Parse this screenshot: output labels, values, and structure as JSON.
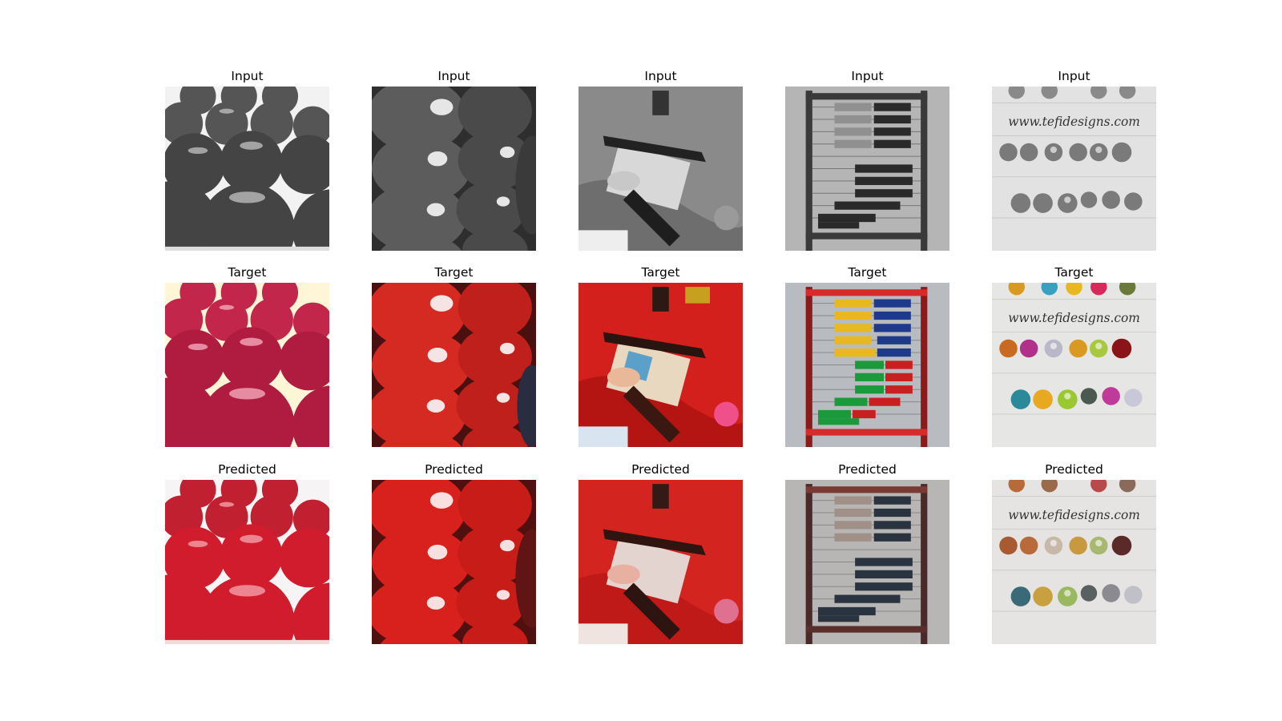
{
  "rows": [
    {
      "title": "Input"
    },
    {
      "title": "Target"
    },
    {
      "title": "Predicted"
    }
  ],
  "columns": [
    {
      "subject": "close-up of rows of shiny balls"
    },
    {
      "subject": "stacked shiny balls"
    },
    {
      "subject": "child hand on abacus with violin"
    },
    {
      "subject": "wooden abacus with beads"
    },
    {
      "subject": "beads on wires with watermark",
      "watermark": "www.tefidesigns.com"
    }
  ]
}
